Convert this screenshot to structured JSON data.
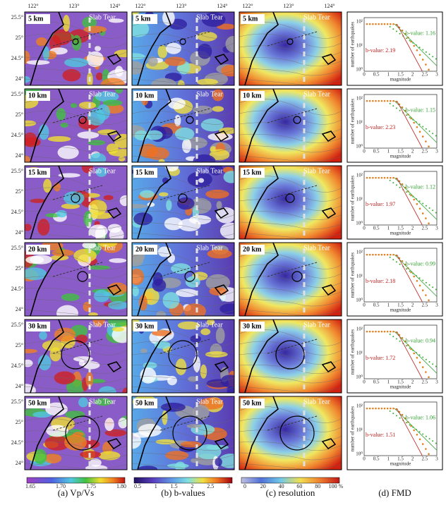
{
  "map_axis": {
    "lon_labels": [
      "122°",
      "123°",
      "124°"
    ],
    "lat_labels": [
      "25.5°",
      "25°",
      "24.5°",
      "24°"
    ]
  },
  "rows": [
    {
      "depth": "5 km",
      "tear": "Slab Tear",
      "b_green": "b-value: 1.16",
      "b_red": "b-value: 2.19"
    },
    {
      "depth": "10 km",
      "tear": "Slab Tear",
      "b_green": "b-value: 1.15",
      "b_red": "b-value: 2.23"
    },
    {
      "depth": "15 km",
      "tear": "Slab Tear",
      "b_green": "b-value: 1.12",
      "b_red": "b-value: 1.97"
    },
    {
      "depth": "20 km",
      "tear": "Slab Tear",
      "b_green": "b-value: 0.99",
      "b_red": "b-value: 2.18"
    },
    {
      "depth": "30 km",
      "tear": "Slab Tear",
      "b_green": "b-value: 0.94",
      "b_red": "b-value: 1.72"
    },
    {
      "depth": "50 km",
      "tear": "Slab Tear",
      "b_green": "b-value: 1.06",
      "b_red": "b-value: 1.51"
    }
  ],
  "fmd_axis": {
    "ylabel": "number of earthquakes",
    "xlabel": "magnitude",
    "xticks": [
      "0",
      "0.5",
      "1",
      "1.5",
      "2",
      "2.5",
      "3"
    ],
    "yticks": [
      "10²",
      "10¹",
      "10⁰"
    ]
  },
  "colorbars": [
    {
      "ticks": [
        "1.65",
        "1.70",
        "1.75",
        "1.80"
      ]
    },
    {
      "ticks": [
        "0.5",
        "1",
        "1.5",
        "2",
        "2.5",
        "3"
      ]
    },
    {
      "ticks": [
        "0",
        "20",
        "40",
        "60",
        "80",
        "100 %"
      ]
    }
  ],
  "captions": [
    "(a)  Vp/Vs",
    "(b)  b-values",
    "(c)  resolution",
    "(d)  FMD"
  ]
}
